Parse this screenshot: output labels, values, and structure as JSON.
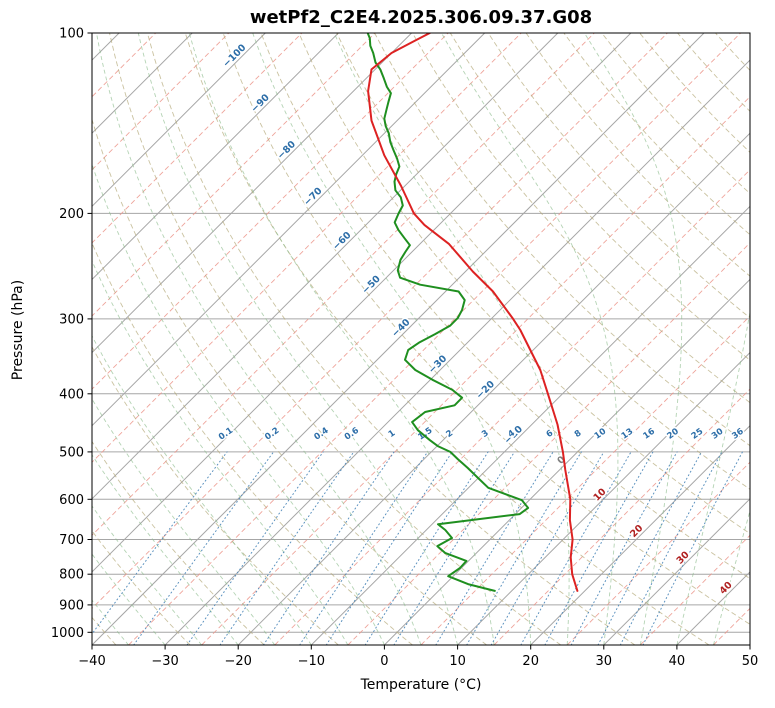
{
  "title": "wetPf2_C2E4.2025.306.09.37.G08",
  "x_axis": {
    "label": "Temperature (°C)",
    "min": -40,
    "max": 50,
    "ticks": [
      -40,
      -30,
      -20,
      -10,
      0,
      10,
      20,
      30,
      40,
      50
    ]
  },
  "y_axis": {
    "label": "Pressure (hPa)",
    "min": 100,
    "max": 1050,
    "scale": "log",
    "ticks": [
      100,
      200,
      300,
      400,
      500,
      600,
      700,
      800,
      900,
      1000
    ]
  },
  "chart_data": {
    "type": "line",
    "variant": "skew-t-log-p",
    "title": "wetPf2_C2E4.2025.306.09.37.G08",
    "xlabel": "Temperature (°C)",
    "ylabel": "Pressure (hPa)",
    "xlim": [
      -40,
      50
    ],
    "pressure_lim": [
      100,
      1050
    ],
    "skew_deg": 45,
    "grid": true,
    "series": [
      {
        "name": "temperature",
        "color": "#dd2222",
        "points_p_t": [
          [
            853,
            19.0
          ],
          [
            800,
            16.0
          ],
          [
            750,
            13.5
          ],
          [
            700,
            11.3
          ],
          [
            650,
            8.3
          ],
          [
            600,
            5.5
          ],
          [
            536,
            0.8
          ],
          [
            500,
            -2.0
          ],
          [
            450,
            -6.5
          ],
          [
            400,
            -12.0
          ],
          [
            365,
            -16.3
          ],
          [
            313,
            -24.5
          ],
          [
            300,
            -27.0
          ],
          [
            270,
            -33.5
          ],
          [
            250,
            -39.0
          ],
          [
            225,
            -46.0
          ],
          [
            209,
            -52.0
          ],
          [
            200,
            -55.0
          ],
          [
            180,
            -60.5
          ],
          [
            160,
            -67.0
          ],
          [
            140,
            -73.5
          ],
          [
            125,
            -78.0
          ],
          [
            115,
            -80.5
          ],
          [
            108,
            -80.0
          ],
          [
            103,
            -78.5
          ],
          [
            100,
            -77.5
          ]
        ]
      },
      {
        "name": "dewpoint",
        "color": "#1f8f1f",
        "points_p_t": [
          [
            853,
            7.7
          ],
          [
            831,
            3.1
          ],
          [
            806,
            -0.7
          ],
          [
            781,
            -0.2
          ],
          [
            760,
            -0.3
          ],
          [
            737,
            -4.3
          ],
          [
            718,
            -6.3
          ],
          [
            696,
            -5.4
          ],
          [
            675,
            -7.4
          ],
          [
            660,
            -9.2
          ],
          [
            635,
            0.6
          ],
          [
            620,
            0.9
          ],
          [
            602,
            -1.0
          ],
          [
            574,
            -7.3
          ],
          [
            553,
            -10.0
          ],
          [
            532,
            -12.8
          ],
          [
            514,
            -15.4
          ],
          [
            500,
            -17.4
          ],
          [
            489,
            -19.9
          ],
          [
            478,
            -21.8
          ],
          [
            460,
            -24.8
          ],
          [
            446,
            -26.7
          ],
          [
            429,
            -26.3
          ],
          [
            418,
            -23.2
          ],
          [
            406,
            -23.2
          ],
          [
            394,
            -25.6
          ],
          [
            379,
            -29.7
          ],
          [
            365,
            -33.4
          ],
          [
            351,
            -36.2
          ],
          [
            338,
            -37.1
          ],
          [
            328,
            -36.6
          ],
          [
            318,
            -35.6
          ],
          [
            308,
            -34.7
          ],
          [
            299,
            -34.7
          ],
          [
            290,
            -35.2
          ],
          [
            279,
            -36.2
          ],
          [
            270,
            -38.2
          ],
          [
            263,
            -44.4
          ],
          [
            256,
            -48.1
          ],
          [
            249,
            -49.4
          ],
          [
            239,
            -50.5
          ],
          [
            232,
            -50.9
          ],
          [
            226,
            -51.2
          ],
          [
            220,
            -52.9
          ],
          [
            213,
            -54.9
          ],
          [
            207,
            -56.4
          ],
          [
            200,
            -57.1
          ],
          [
            194,
            -57.6
          ],
          [
            188,
            -59.0
          ],
          [
            183,
            -60.7
          ],
          [
            177,
            -62.0
          ],
          [
            172,
            -62.8
          ],
          [
            167,
            -63.4
          ],
          [
            162,
            -64.8
          ],
          [
            157,
            -66.4
          ],
          [
            152,
            -68.0
          ],
          [
            147,
            -69.4
          ],
          [
            143,
            -70.8
          ],
          [
            139,
            -72.0
          ],
          [
            134,
            -73.0
          ],
          [
            130,
            -73.8
          ],
          [
            126,
            -74.6
          ],
          [
            123,
            -76.0
          ],
          [
            119,
            -77.6
          ],
          [
            115,
            -79.3
          ],
          [
            112,
            -80.9
          ],
          [
            108,
            -82.5
          ],
          [
            105,
            -83.9
          ],
          [
            102,
            -85.0
          ],
          [
            100,
            -86.0
          ]
        ]
      }
    ],
    "isotherm_labels": {
      "color_negative": "#2d6ea8",
      "color_zero": "#808080",
      "color_positive": "#b02020",
      "items": [
        [
          -100,
          110
        ],
        [
          -90,
          132
        ],
        [
          -80,
          158
        ],
        [
          -70,
          189
        ],
        [
          -60,
          224
        ],
        [
          -50,
          265
        ],
        [
          -40,
          313
        ],
        [
          -30,
          360
        ],
        [
          -20,
          397
        ],
        [
          -10,
          472
        ],
        [
          0,
          520
        ],
        [
          10,
          594
        ],
        [
          20,
          683
        ],
        [
          30,
          757
        ],
        [
          40,
          850
        ]
      ]
    },
    "mixing_ratio_labels_g_kg": [
      0.1,
      0.2,
      0.4,
      0.6,
      1,
      1.5,
      2,
      3,
      4,
      6,
      8,
      10,
      13,
      16,
      20,
      25,
      30,
      36
    ],
    "background": {
      "pressure_gridlines": [
        100,
        200,
        300,
        400,
        500,
        600,
        700,
        800,
        900,
        1000
      ],
      "isotherms_solid_c": {
        "start": -120,
        "end": 50,
        "step": 10,
        "color": "#a6a6a6"
      },
      "isotherms_dashed_c": {
        "start": -115,
        "end": 45,
        "step": 10,
        "color": "#ec958a"
      },
      "dry_adiabats_theta_c": {
        "start": -40,
        "end": 190,
        "step": 10,
        "color": "#b3a878"
      },
      "moist_adiabats_t0_c": {
        "start": -40,
        "end": 45,
        "step": 5,
        "color": "#8cbc8c"
      },
      "mixing_lines": {
        "values_g_kg": [
          0.1,
          0.2,
          0.4,
          0.6,
          1,
          1.5,
          2,
          3,
          4,
          6,
          8,
          10,
          13,
          16,
          20,
          25,
          30,
          36
        ],
        "color": "#4a86b8",
        "p_top": 500
      }
    }
  }
}
